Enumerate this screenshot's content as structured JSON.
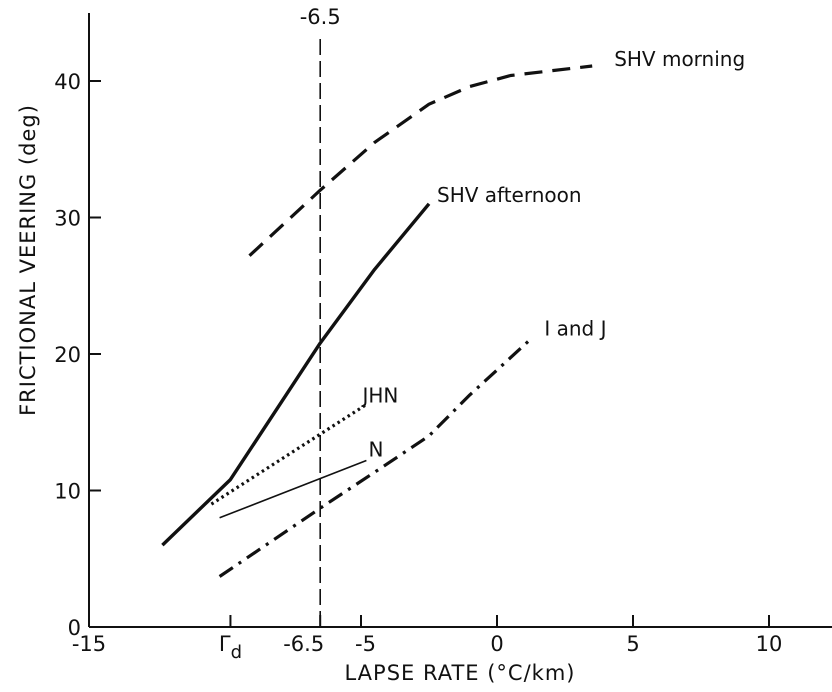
{
  "chart_data": {
    "type": "line",
    "xlabel": "LAPSE RATE   (°C/km)",
    "ylabel": "FRICTIONAL   VEERING (deg)",
    "xlim": [
      -15,
      12
    ],
    "ylim": [
      0,
      45
    ],
    "x_ticks": [
      {
        "value": -15,
        "label": "-15"
      },
      {
        "value": -9.8,
        "label": "Γd"
      },
      {
        "value": -6.5,
        "label": "-6.5"
      },
      {
        "value": -5,
        "label": "-5"
      },
      {
        "value": 0,
        "label": "0"
      },
      {
        "value": 5,
        "label": "5"
      },
      {
        "value": 10,
        "label": "10"
      }
    ],
    "y_ticks": [
      0,
      10,
      20,
      30,
      40
    ],
    "reference_line": {
      "x": -6.5,
      "label": "-6.5",
      "style": "dashed"
    },
    "series": [
      {
        "name": "SHV morning",
        "style": "dashed",
        "x": [
          -9.1,
          -6.5,
          -4.5,
          -2.5,
          -1,
          0.5,
          3.5
        ],
        "y": [
          27.2,
          32,
          35.5,
          38.3,
          39.6,
          40.4,
          41.1
        ]
      },
      {
        "name": "SHV afternoon",
        "style": "solid",
        "x": [
          -12.3,
          -9.8,
          -6.5,
          -4.5,
          -2.5
        ],
        "y": [
          6,
          10.8,
          20.8,
          26.2,
          31
        ]
      },
      {
        "name": "JHN",
        "style": "dotted",
        "x": [
          -10.5,
          -4.8
        ],
        "y": [
          9,
          16.3
        ]
      },
      {
        "name": "N",
        "style": "solid-thin",
        "x": [
          -10.2,
          -4.8
        ],
        "y": [
          8,
          12.2
        ]
      },
      {
        "name": "I and J",
        "style": "dashdot",
        "x": [
          -10.2,
          -6.5,
          -4,
          -2.5,
          -1,
          1.3
        ],
        "y": [
          3.7,
          8.7,
          12,
          14,
          17,
          21.2
        ]
      }
    ]
  }
}
